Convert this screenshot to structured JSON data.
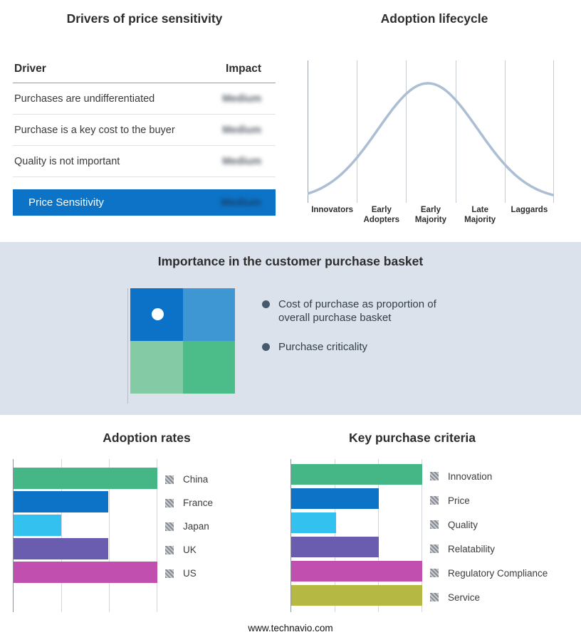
{
  "footer": {
    "site": "www.technavio.com"
  },
  "drivers_panel": {
    "title": "Drivers of price sensitivity",
    "columns": {
      "driver": "Driver",
      "impact": "Impact"
    },
    "rows": [
      {
        "driver": "Purchases are undifferentiated",
        "impact": "Medium"
      },
      {
        "driver": "Purchase is a key cost to the buyer",
        "impact": "Medium"
      },
      {
        "driver": "Quality is not important",
        "impact": "Medium"
      }
    ],
    "highlight_row": {
      "driver": "Price Sensitivity",
      "impact": "Medium"
    },
    "highlight_color": "#0d73c6"
  },
  "lifecycle": {
    "title": "Adoption lifecycle",
    "stages": [
      "Innovators",
      "Early Adopters",
      "Early Majority",
      "Late Majority",
      "Laggards"
    ],
    "curve_color": "#abbed4"
  },
  "basket": {
    "title": "Importance in the customer purchase basket",
    "bullets": [
      "Cost of purchase as proportion of overall purchase basket",
      "Purchase criticality"
    ],
    "matrix": {
      "top_left": "#0b72c8",
      "top_right": "#3e96d2",
      "bottom_left": "#84cba5",
      "bottom_right": "#4cbd89",
      "marker_quadrant": "top_left"
    },
    "background": "#dbe2eb"
  },
  "chart_data": [
    {
      "type": "bar",
      "orientation": "horizontal",
      "title": "Adoption rates",
      "categories": [
        "China",
        "France",
        "Japan",
        "UK",
        "US"
      ],
      "values": [
        100,
        66,
        33,
        66,
        100
      ],
      "colors": [
        "#45b786",
        "#0d73c6",
        "#33c1f0",
        "#6a5caf",
        "#c04fb0"
      ],
      "xlim": [
        0,
        100
      ],
      "gridlines": [
        0,
        33.3,
        66.7,
        100
      ],
      "legend_position": "right"
    },
    {
      "type": "bar",
      "orientation": "horizontal",
      "title": "Key purchase criteria",
      "categories": [
        "Innovation",
        "Price",
        "Quality",
        "Relatability",
        "Regulatory Compliance",
        "Service"
      ],
      "values": [
        100,
        67,
        34,
        67,
        100,
        100
      ],
      "colors": [
        "#45b786",
        "#0d73c6",
        "#33c1f0",
        "#6a5caf",
        "#c04fb0",
        "#b5b843"
      ],
      "xlim": [
        0,
        100
      ],
      "gridlines": [
        0,
        33.3,
        66.7,
        100
      ],
      "legend_position": "right"
    },
    {
      "type": "line",
      "title": "Adoption lifecycle",
      "x_categories": [
        "Innovators",
        "Early Adopters",
        "Early Majority",
        "Late Majority",
        "Laggards"
      ],
      "shape": "bell-curve",
      "peak_stage": "Early Majority"
    }
  ]
}
